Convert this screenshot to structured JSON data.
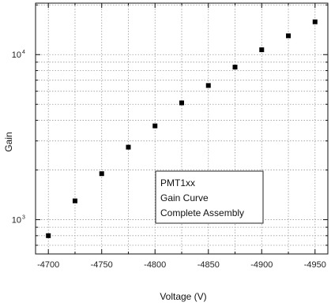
{
  "chart_data": {
    "type": "scatter",
    "xlabel": "Voltage (V)",
    "ylabel": "Gain",
    "x_axis": {
      "scale": "linear",
      "direction": "decreasing values to the right",
      "range": [
        -4688,
        -4962
      ],
      "ticks": [
        -4700,
        -4750,
        -4800,
        -4850,
        -4900,
        -4950
      ],
      "tick_labels": [
        "-4700",
        "-4750",
        "-4800",
        "-4850",
        "-4900",
        "-4950"
      ],
      "minor_ticks": [
        -4725,
        -4775,
        -4825,
        -4875,
        -4925
      ]
    },
    "y_axis": {
      "scale": "log",
      "range": [
        620,
        20500
      ],
      "major_ticks": [
        {
          "value": 1000,
          "base": "10",
          "exp": "3"
        },
        {
          "value": 10000,
          "base": "10",
          "exp": "4"
        }
      ]
    },
    "grid": true,
    "series": [
      {
        "marker": "square",
        "color": "#000000",
        "points": [
          {
            "x": -4700,
            "y": 800
          },
          {
            "x": -4725,
            "y": 1300
          },
          {
            "x": -4750,
            "y": 1900
          },
          {
            "x": -4775,
            "y": 2750
          },
          {
            "x": -4800,
            "y": 3700
          },
          {
            "x": -4825,
            "y": 5100
          },
          {
            "x": -4850,
            "y": 6500
          },
          {
            "x": -4875,
            "y": 8400
          },
          {
            "x": -4900,
            "y": 10700
          },
          {
            "x": -4925,
            "y": 13000
          },
          {
            "x": -4950,
            "y": 15800
          }
        ]
      }
    ],
    "annotation": {
      "lines": [
        "PMT1xx",
        "Gain Curve",
        "Complete Assembly"
      ]
    }
  }
}
